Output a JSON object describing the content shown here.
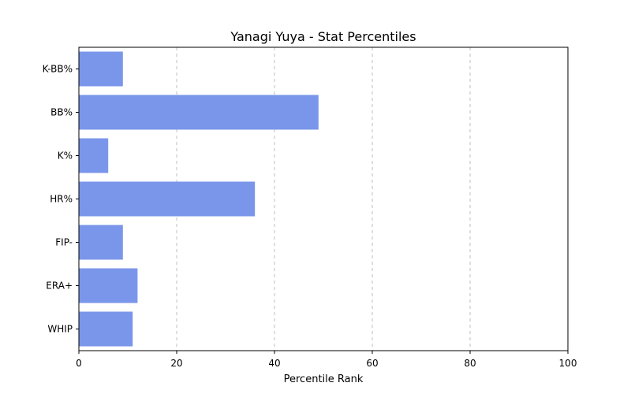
{
  "chart_data": {
    "type": "bar",
    "orientation": "horizontal",
    "title": "Yanagi Yuya - Stat Percentiles",
    "xlabel": "Percentile Rank",
    "ylabel": "",
    "xlim": [
      0,
      100
    ],
    "xticks": [
      0,
      20,
      40,
      60,
      80,
      100
    ],
    "grid": "x-dashed",
    "bar_color": "#7a96ea",
    "categories": [
      "K-BB%",
      "BB%",
      "K%",
      "HR%",
      "FIP-",
      "ERA+",
      "WHIP"
    ],
    "values": [
      9,
      49,
      6,
      36,
      9,
      12,
      11
    ]
  }
}
